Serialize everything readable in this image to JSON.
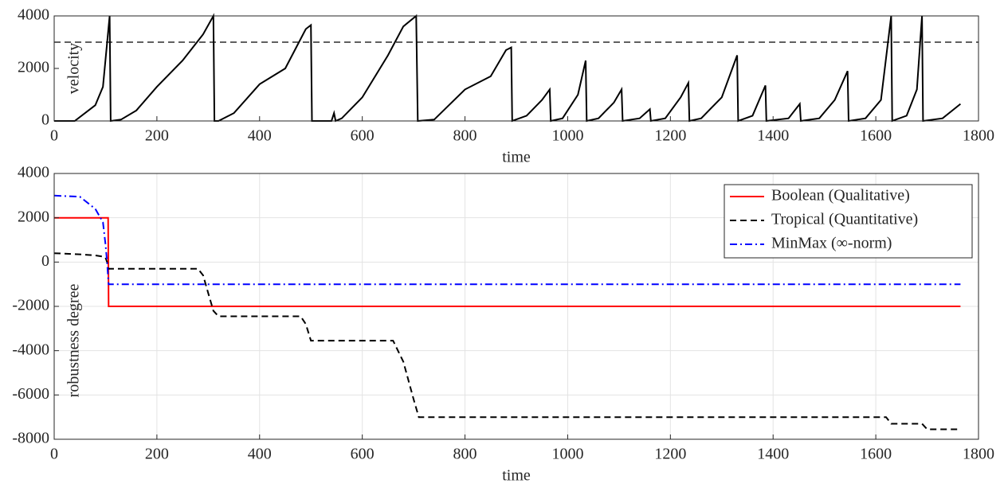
{
  "chart_data": [
    {
      "type": "line",
      "ylabel": "velocity",
      "xlabel": "time",
      "xlim": [
        0,
        1800
      ],
      "xticks": [
        0,
        200,
        400,
        600,
        800,
        1000,
        1200,
        1400,
        1600,
        1800
      ],
      "ylim": [
        0,
        4000
      ],
      "yticks": [
        0,
        2000,
        4000
      ],
      "grid": false,
      "legend": false,
      "reference_line": {
        "value": 3000,
        "color": "#000000",
        "dash": "dashed"
      },
      "x": [
        0,
        40,
        80,
        95,
        108,
        110,
        130,
        160,
        200,
        250,
        290,
        310,
        312,
        320,
        350,
        400,
        450,
        490,
        500,
        502,
        540,
        545,
        548,
        560,
        600,
        650,
        680,
        705,
        708,
        740,
        800,
        850,
        880,
        890,
        892,
        920,
        950,
        965,
        967,
        990,
        1020,
        1035,
        1037,
        1060,
        1090,
        1105,
        1107,
        1140,
        1160,
        1162,
        1190,
        1220,
        1235,
        1237,
        1260,
        1300,
        1330,
        1332,
        1360,
        1385,
        1387,
        1430,
        1452,
        1454,
        1490,
        1520,
        1545,
        1547,
        1580,
        1610,
        1630,
        1632,
        1660,
        1680,
        1690,
        1692,
        1730,
        1765
      ],
      "series": [
        {
          "color": "#000000",
          "dash": "solid",
          "values": [
            0,
            0,
            600,
            1300,
            4000,
            0,
            50,
            400,
            1300,
            2300,
            3300,
            4000,
            0,
            0,
            300,
            1400,
            2000,
            3500,
            3650,
            0,
            0,
            300,
            0,
            100,
            900,
            2500,
            3600,
            4000,
            0,
            50,
            1200,
            1700,
            2700,
            2800,
            0,
            200,
            800,
            1200,
            0,
            100,
            1000,
            2300,
            0,
            100,
            700,
            1200,
            0,
            100,
            450,
            0,
            100,
            900,
            1450,
            0,
            100,
            900,
            2500,
            0,
            200,
            1350,
            0,
            100,
            650,
            0,
            100,
            800,
            1900,
            0,
            100,
            800,
            4000,
            0,
            200,
            1200,
            4000,
            0,
            100,
            650
          ]
        }
      ]
    },
    {
      "type": "line",
      "ylabel": "robustness degree",
      "xlabel": "time",
      "xlim": [
        0,
        1800
      ],
      "xticks": [
        0,
        200,
        400,
        600,
        800,
        1000,
        1200,
        1400,
        1600,
        1800
      ],
      "ylim": [
        -8000,
        4000
      ],
      "yticks": [
        -8000,
        -6000,
        -4000,
        -2000,
        0,
        2000,
        4000
      ],
      "grid": true,
      "legend": "upper right",
      "x": [
        0,
        50,
        80,
        95,
        100,
        103,
        105,
        106,
        110,
        280,
        290,
        300,
        310,
        320,
        480,
        490,
        500,
        510,
        660,
        680,
        700,
        710,
        1620,
        1630,
        1690,
        1700,
        1765
      ],
      "series": [
        {
          "name": "Boolean (Qualitative)",
          "color": "#ff0000",
          "dash": "solid",
          "values": [
            2000,
            2000,
            2000,
            2000,
            2000,
            2000,
            2000,
            -2000,
            -2000,
            -2000,
            -2000,
            -2000,
            -2000,
            -2000,
            -2000,
            -2000,
            -2000,
            -2000,
            -2000,
            -2000,
            -2000,
            -2000,
            -2000,
            -2000,
            -2000,
            -2000,
            -2000
          ]
        },
        {
          "name": "Tropical (Quantitative)",
          "color": "#000000",
          "dash": "dashed",
          "values": [
            400,
            350,
            300,
            250,
            200,
            0,
            -200,
            -300,
            -300,
            -300,
            -600,
            -1400,
            -2200,
            -2450,
            -2450,
            -2800,
            -3550,
            -3550,
            -3550,
            -4500,
            -6200,
            -7000,
            -7000,
            -7300,
            -7300,
            -7550,
            -7550
          ]
        },
        {
          "name": "MinMax (∞-norm)",
          "color": "#0000ff",
          "dash": "dashdot",
          "values": [
            3000,
            2950,
            2400,
            1800,
            800,
            0,
            -700,
            -1000,
            -1000,
            -1000,
            -1000,
            -1000,
            -1000,
            -1000,
            -1000,
            -1000,
            -1000,
            -1000,
            -1000,
            -1000,
            -1000,
            -1000,
            -1000,
            -1000,
            -1000,
            -1000,
            -1000
          ]
        }
      ]
    }
  ]
}
